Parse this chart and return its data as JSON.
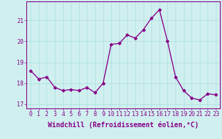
{
  "x": [
    0,
    1,
    2,
    3,
    4,
    5,
    6,
    7,
    8,
    9,
    10,
    11,
    12,
    13,
    14,
    15,
    16,
    17,
    18,
    19,
    20,
    21,
    22,
    23
  ],
  "y": [
    18.6,
    18.2,
    18.3,
    17.8,
    17.65,
    17.7,
    17.65,
    17.8,
    17.55,
    18.0,
    19.85,
    19.9,
    20.3,
    20.15,
    20.55,
    21.1,
    21.5,
    20.0,
    18.3,
    17.65,
    17.3,
    17.2,
    17.5,
    17.45
  ],
  "line_color": "#880088",
  "marker": "D",
  "marker_size": 2.0,
  "bg_color": "#d0f0f0",
  "grid_color": "#aadddd",
  "xlabel": "Windchill (Refroidissement éolien,°C)",
  "ylim": [
    16.8,
    21.9
  ],
  "xlim": [
    -0.5,
    23.5
  ],
  "yticks": [
    17,
    18,
    19,
    20,
    21
  ],
  "xticks": [
    0,
    1,
    2,
    3,
    4,
    5,
    6,
    7,
    8,
    9,
    10,
    11,
    12,
    13,
    14,
    15,
    16,
    17,
    18,
    19,
    20,
    21,
    22,
    23
  ],
  "tick_color": "#880088",
  "tick_label_fontsize": 6,
  "xlabel_fontsize": 7,
  "spine_color": "#880088",
  "line_width": 1.0
}
